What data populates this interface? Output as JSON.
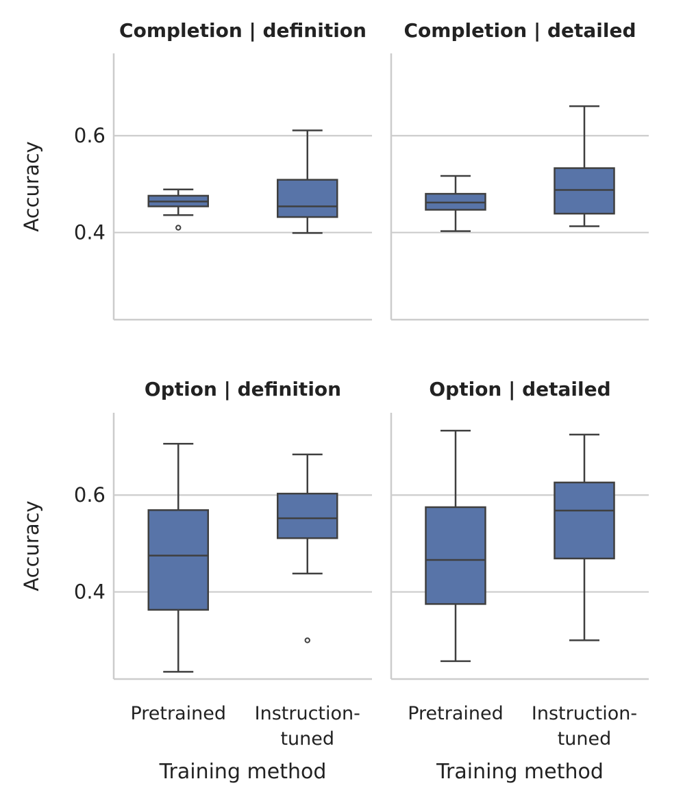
{
  "chart_data": {
    "type": "box",
    "ylabel": "Accuracy",
    "xlabel": "Training method",
    "categories": [
      "Pretrained",
      "Instruction-tuned"
    ],
    "category_lines": [
      [
        "Pretrained"
      ],
      [
        "Instruction-",
        "tuned"
      ]
    ],
    "yticks": [
      0.4,
      0.6
    ],
    "yticks_labels": [
      "0.4",
      "0.6"
    ],
    "ylim": [
      0.22,
      0.77
    ],
    "grid": "horizontal",
    "colors": {
      "box": "#5874A8",
      "line": "#3F3F3F",
      "grid": "#CCCCCC",
      "axis": "#CCCCCC"
    },
    "panels": [
      {
        "title": "Completion | definition",
        "boxes": [
          {
            "category": "Pretrained",
            "whislo": 0.436,
            "q1": 0.454,
            "med": 0.464,
            "q3": 0.476,
            "whishi": 0.489,
            "fliers": [
              0.41
            ]
          },
          {
            "category": "Instruction-tuned",
            "whislo": 0.399,
            "q1": 0.432,
            "med": 0.454,
            "q3": 0.509,
            "whishi": 0.611,
            "fliers": []
          }
        ]
      },
      {
        "title": "Completion | detailed",
        "boxes": [
          {
            "category": "Pretrained",
            "whislo": 0.403,
            "q1": 0.447,
            "med": 0.462,
            "q3": 0.48,
            "whishi": 0.517,
            "fliers": []
          },
          {
            "category": "Instruction-tuned",
            "whislo": 0.413,
            "q1": 0.439,
            "med": 0.488,
            "q3": 0.533,
            "whishi": 0.661,
            "fliers": []
          }
        ]
      },
      {
        "title": "Option | definition",
        "boxes": [
          {
            "category": "Pretrained",
            "whislo": 0.235,
            "q1": 0.363,
            "med": 0.475,
            "q3": 0.569,
            "whishi": 0.706,
            "fliers": []
          },
          {
            "category": "Instruction-tuned",
            "whislo": 0.438,
            "q1": 0.511,
            "med": 0.552,
            "q3": 0.603,
            "whishi": 0.684,
            "fliers": [
              0.3
            ]
          }
        ]
      },
      {
        "title": "Option | detailed",
        "boxes": [
          {
            "category": "Pretrained",
            "whislo": 0.257,
            "q1": 0.375,
            "med": 0.466,
            "q3": 0.575,
            "whishi": 0.733,
            "fliers": []
          },
          {
            "category": "Instruction-tuned",
            "whislo": 0.3,
            "q1": 0.469,
            "med": 0.568,
            "q3": 0.626,
            "whishi": 0.725,
            "fliers": []
          }
        ]
      }
    ]
  }
}
